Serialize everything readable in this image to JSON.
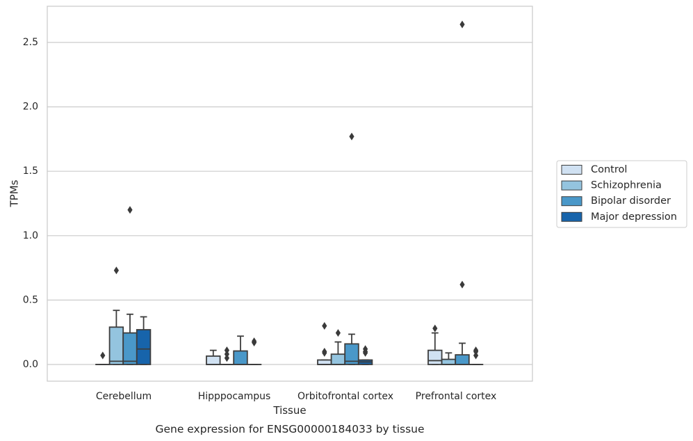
{
  "chart_data": {
    "type": "box",
    "title": "",
    "caption": "Gene expression for ENSG00000184033 by tissue",
    "xlabel": "Tissue",
    "ylabel": "TPMs",
    "ylim": [
      -0.13,
      2.78
    ],
    "yticks": [
      0.0,
      0.5,
      1.0,
      1.5,
      2.0,
      2.5
    ],
    "ytick_labels": [
      "0.0",
      "0.5",
      "1.0",
      "1.5",
      "2.0",
      "2.5"
    ],
    "grid": "horizontal",
    "legend_position": "right",
    "categories": [
      "Cerebellum",
      "Hipppocampus",
      "Orbitofrontal cortex",
      "Prefrontal cortex"
    ],
    "series": [
      {
        "name": "Control",
        "color": "#d0e1f2",
        "boxes": [
          {
            "q1": 0,
            "median": 0,
            "q3": 0,
            "whisker_low": 0,
            "whisker_high": 0,
            "outliers": [
              0.07
            ]
          },
          {
            "q1": 0,
            "median": 0,
            "q3": 0.065,
            "whisker_low": 0,
            "whisker_high": 0.11,
            "outliers": []
          },
          {
            "q1": 0,
            "median": 0,
            "q3": 0.035,
            "whisker_low": 0,
            "whisker_high": 0.035,
            "outliers": [
              0.09,
              0.1,
              0.3
            ]
          },
          {
            "q1": 0,
            "median": 0.03,
            "q3": 0.11,
            "whisker_low": 0,
            "whisker_high": 0.245,
            "outliers": [
              0.28
            ]
          }
        ]
      },
      {
        "name": "Schizophrenia",
        "color": "#94c4df",
        "boxes": [
          {
            "q1": 0,
            "median": 0.025,
            "q3": 0.29,
            "whisker_low": 0,
            "whisker_high": 0.42,
            "outliers": [
              0.73
            ]
          },
          {
            "q1": 0,
            "median": 0,
            "q3": 0,
            "whisker_low": 0,
            "whisker_high": 0,
            "outliers": [
              0.05,
              0.08,
              0.11
            ]
          },
          {
            "q1": 0,
            "median": 0,
            "q3": 0.08,
            "whisker_low": 0,
            "whisker_high": 0.175,
            "outliers": [
              0.245
            ]
          },
          {
            "q1": 0,
            "median": 0,
            "q3": 0.04,
            "whisker_low": 0,
            "whisker_high": 0.09,
            "outliers": []
          }
        ]
      },
      {
        "name": "Bipolar disorder",
        "color": "#4a98c9",
        "boxes": [
          {
            "q1": 0,
            "median": 0.025,
            "q3": 0.245,
            "whisker_low": 0,
            "whisker_high": 0.39,
            "outliers": [
              1.2
            ]
          },
          {
            "q1": 0,
            "median": 0,
            "q3": 0.105,
            "whisker_low": 0,
            "whisker_high": 0.22,
            "outliers": []
          },
          {
            "q1": 0,
            "median": 0.025,
            "q3": 0.16,
            "whisker_low": 0,
            "whisker_high": 0.235,
            "outliers": [
              1.77
            ]
          },
          {
            "q1": 0,
            "median": 0,
            "q3": 0.075,
            "whisker_low": 0,
            "whisker_high": 0.165,
            "outliers": [
              0.62,
              2.64
            ]
          }
        ]
      },
      {
        "name": "Major depression",
        "color": "#1764ab",
        "boxes": [
          {
            "q1": 0,
            "median": 0.12,
            "q3": 0.27,
            "whisker_low": 0,
            "whisker_high": 0.37,
            "outliers": []
          },
          {
            "q1": 0,
            "median": 0,
            "q3": 0,
            "whisker_low": 0,
            "whisker_high": 0,
            "outliers": [
              0.17,
              0.18
            ]
          },
          {
            "q1": 0,
            "median": 0.02,
            "q3": 0.035,
            "whisker_low": 0,
            "whisker_high": 0.035,
            "outliers": [
              0.09,
              0.1,
              0.12
            ]
          },
          {
            "q1": 0,
            "median": 0,
            "q3": 0,
            "whisker_low": 0,
            "whisker_high": 0,
            "outliers": [
              0.07,
              0.1,
              0.11
            ]
          }
        ]
      }
    ]
  }
}
